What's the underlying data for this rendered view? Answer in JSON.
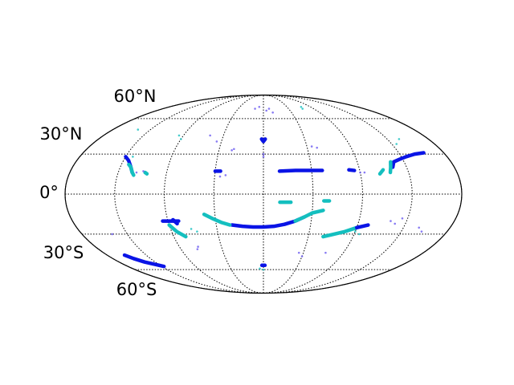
{
  "map": {
    "projection": "Mollweide",
    "latitude_labels": [
      "60°N",
      "30°N",
      "0°",
      "30°S",
      "60°S"
    ],
    "colors": {
      "outline": "#000000",
      "grid": "#000000",
      "background": "#ffffff",
      "series_a": "#0a14e6",
      "series_b": "#14bfbf",
      "series_faint": "#6a5af0"
    },
    "graticule": {
      "meridians": [
        -180,
        -135,
        -90,
        -45,
        0,
        45,
        90,
        135,
        180
      ],
      "parallels": [
        -60,
        -30,
        0,
        30,
        60
      ],
      "style": "dotted"
    },
    "tracks": [
      {
        "color": "series_a",
        "points": [
          [
            -30,
            -23
          ],
          [
            -20,
            -24
          ],
          [
            -10,
            -24.5
          ],
          [
            0,
            -24.5
          ],
          [
            10,
            -24
          ],
          [
            20,
            -22.5
          ],
          [
            30,
            -20
          ],
          [
            38,
            -17
          ]
        ]
      },
      {
        "color": "series_b",
        "points": [
          [
            -55,
            -15
          ],
          [
            -48,
            -18
          ],
          [
            -40,
            -21
          ],
          [
            -32,
            -23
          ]
        ]
      },
      {
        "color": "series_b",
        "points": [
          [
            30,
            -20
          ],
          [
            38,
            -17
          ],
          [
            45,
            -14
          ],
          [
            55,
            -12
          ]
        ]
      },
      {
        "color": "series_a",
        "points": [
          [
            15,
            17
          ],
          [
            30,
            17.5
          ],
          [
            45,
            17.5
          ],
          [
            55,
            17.5
          ]
        ]
      },
      {
        "color": "series_a",
        "points": [
          [
            -135,
            28
          ],
          [
            -130,
            25
          ],
          [
            -125,
            20
          ],
          [
            -122,
            16
          ]
        ]
      },
      {
        "color": "series_b",
        "points": [
          [
            -128,
            22
          ],
          [
            -125,
            20
          ],
          [
            -122,
            16
          ],
          [
            -120,
            14
          ]
        ]
      },
      {
        "color": "series_a",
        "points": [
          [
            -160,
            -47
          ],
          [
            -155,
            -50
          ],
          [
            -148,
            -53
          ],
          [
            -140,
            -55
          ],
          [
            -132,
            -57
          ]
        ]
      },
      {
        "color": "series_a",
        "points": [
          [
            122,
            20
          ],
          [
            125,
            24
          ],
          [
            132,
            26
          ],
          [
            140,
            28
          ],
          [
            150,
            30
          ],
          [
            160,
            31
          ]
        ]
      },
      {
        "color": "series_b",
        "points": [
          [
            118,
            16
          ],
          [
            120,
            20
          ],
          [
            122,
            24
          ]
        ]
      },
      {
        "color": "series_b",
        "points": [
          [
            108,
            15
          ],
          [
            112,
            18
          ]
        ]
      },
      {
        "color": "series_b",
        "points": [
          [
            -90,
            -23
          ],
          [
            -85,
            -28
          ],
          [
            -78,
            -32
          ]
        ]
      },
      {
        "color": "series_a",
        "points": [
          [
            -85,
            -19
          ],
          [
            -82,
            -22
          ]
        ]
      },
      {
        "color": "series_a",
        "points": [
          [
            -95,
            -20
          ],
          [
            -88,
            -20
          ],
          [
            -80,
            -20
          ]
        ]
      },
      {
        "color": "series_b",
        "points": [
          [
            60,
            -32
          ],
          [
            70,
            -30
          ],
          [
            80,
            -28
          ],
          [
            90,
            -25
          ]
        ]
      },
      {
        "color": "series_a",
        "points": [
          [
            90,
            -25
          ],
          [
            95,
            -24
          ],
          [
            100,
            -23
          ]
        ]
      },
      {
        "color": "series_a",
        "points": [
          [
            -45,
            17
          ],
          [
            -40,
            17
          ]
        ]
      },
      {
        "color": "series_a",
        "points": [
          [
            80,
            18
          ],
          [
            85,
            17.5
          ]
        ]
      },
      {
        "color": "series_b",
        "points": [
          [
            55,
            -5
          ],
          [
            60,
            -5
          ]
        ]
      },
      {
        "color": "series_a",
        "points": [
          [
            -2,
            42
          ],
          [
            0,
            40
          ],
          [
            2,
            42
          ]
        ]
      },
      {
        "color": "series_a",
        "points": [
          [
            -2,
            -56
          ],
          [
            0,
            -56
          ],
          [
            2,
            -56
          ]
        ]
      },
      {
        "color": "series_b",
        "points": [
          [
            15,
            -6
          ],
          [
            25,
            -6
          ]
        ]
      },
      {
        "color": "series_b",
        "points": [
          [
            -110,
            16
          ],
          [
            -108,
            15
          ]
        ]
      }
    ],
    "dots": [
      {
        "color": "series_faint",
        "points": [
          [
            5,
            68
          ],
          [
            10,
            70
          ],
          [
            -8,
            72
          ],
          [
            15,
            66
          ],
          [
            -15,
            70
          ],
          [
            50,
            36
          ],
          [
            55,
            35
          ],
          [
            -50,
            40
          ],
          [
            -60,
            45
          ],
          [
            -30,
            34
          ],
          [
            -32,
            33
          ],
          [
            40,
            -45
          ],
          [
            45,
            -48
          ],
          [
            70,
            -45
          ],
          [
            -70,
            -40
          ],
          [
            -72,
            -42
          ],
          [
            120,
            -20
          ],
          [
            125,
            -22
          ],
          [
            130,
            -18
          ],
          [
            -118,
            16
          ],
          [
            -112,
            17
          ],
          [
            0,
            30
          ],
          [
            0,
            28
          ],
          [
            150,
            -25
          ],
          [
            155,
            -28
          ],
          [
            -150,
            -30
          ],
          [
            -40,
            13
          ],
          [
            -35,
            14
          ],
          [
            90,
            16
          ],
          [
            94,
            16
          ]
        ]
      },
      {
        "color": "series_b",
        "points": [
          [
            70,
            70
          ],
          [
            72,
            72
          ],
          [
            -95,
            45
          ],
          [
            -90,
            42
          ],
          [
            148,
            42
          ],
          [
            140,
            38
          ],
          [
            0,
            -60
          ],
          [
            -5,
            -59
          ],
          [
            -70,
            -26
          ],
          [
            -65,
            -28
          ],
          [
            90,
            -28
          ],
          [
            95,
            -30
          ],
          [
            -150,
            50
          ],
          [
            -128,
            28
          ]
        ]
      }
    ]
  }
}
